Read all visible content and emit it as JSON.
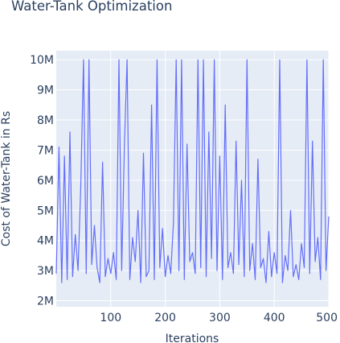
{
  "chart_data": {
    "type": "line",
    "title": "Water-Tank Optimization",
    "xlabel": "Iterations",
    "ylabel": "Cost of Water-Tank in Rs",
    "xlim": [
      0,
      500
    ],
    "ylim": [
      1800000,
      10300000
    ],
    "x_ticks": [
      100,
      200,
      300,
      400,
      500
    ],
    "x_tick_labels": [
      "100",
      "200",
      "300",
      "400",
      "500"
    ],
    "y_ticks": [
      2000000,
      3000000,
      4000000,
      5000000,
      6000000,
      7000000,
      8000000,
      9000000,
      10000000
    ],
    "y_tick_labels": [
      "2M",
      "3M",
      "4M",
      "5M",
      "6M",
      "7M",
      "8M",
      "9M",
      "10M"
    ],
    "grid": true,
    "series": [
      {
        "color": "#636efa",
        "x": [
          0,
          5,
          10,
          15,
          20,
          25,
          30,
          35,
          40,
          45,
          50,
          55,
          60,
          65,
          70,
          75,
          80,
          85,
          90,
          95,
          100,
          105,
          110,
          115,
          120,
          125,
          130,
          135,
          140,
          145,
          150,
          155,
          160,
          165,
          170,
          175,
          180,
          185,
          190,
          195,
          200,
          205,
          210,
          215,
          220,
          225,
          230,
          235,
          240,
          245,
          250,
          255,
          260,
          265,
          270,
          275,
          280,
          285,
          290,
          295,
          300,
          305,
          310,
          315,
          320,
          325,
          330,
          335,
          340,
          345,
          350,
          355,
          360,
          365,
          370,
          375,
          380,
          385,
          390,
          395,
          400,
          405,
          410,
          415,
          420,
          425,
          430,
          435,
          440,
          445,
          450,
          455,
          460,
          465,
          470,
          475,
          480,
          485,
          490,
          495,
          500
        ],
        "values": [
          2900000,
          7100000,
          2600000,
          6800000,
          2700000,
          7600000,
          2800000,
          4200000,
          3000000,
          5800000,
          10000000,
          2900000,
          10000000,
          3200000,
          4500000,
          3100000,
          2600000,
          6600000,
          2800000,
          3400000,
          2900000,
          3600000,
          2700000,
          10000000,
          3000000,
          7200000,
          10000000,
          2700000,
          4100000,
          3300000,
          5000000,
          2600000,
          6900000,
          2800000,
          3000000,
          8500000,
          2700000,
          10000000,
          3100000,
          4400000,
          2800000,
          3500000,
          2900000,
          4600000,
          10000000,
          3000000,
          10000000,
          2700000,
          7200000,
          3300000,
          3600000,
          2900000,
          10000000,
          3100000,
          10000000,
          2800000,
          7600000,
          3400000,
          10000000,
          3000000,
          6800000,
          2700000,
          8500000,
          3100000,
          3600000,
          2900000,
          7300000,
          3200000,
          6000000,
          2800000,
          10000000,
          3000000,
          3900000,
          2700000,
          6700000,
          3100000,
          3400000,
          2600000,
          4300000,
          2800000,
          3600000,
          2900000,
          10000000,
          2600000,
          3500000,
          3000000,
          5000000,
          2800000,
          3200000,
          2700000,
          3900000,
          3100000,
          10000000,
          2900000,
          7300000,
          3300000,
          4100000,
          2700000,
          10000000,
          3000000,
          4800000
        ]
      }
    ]
  }
}
